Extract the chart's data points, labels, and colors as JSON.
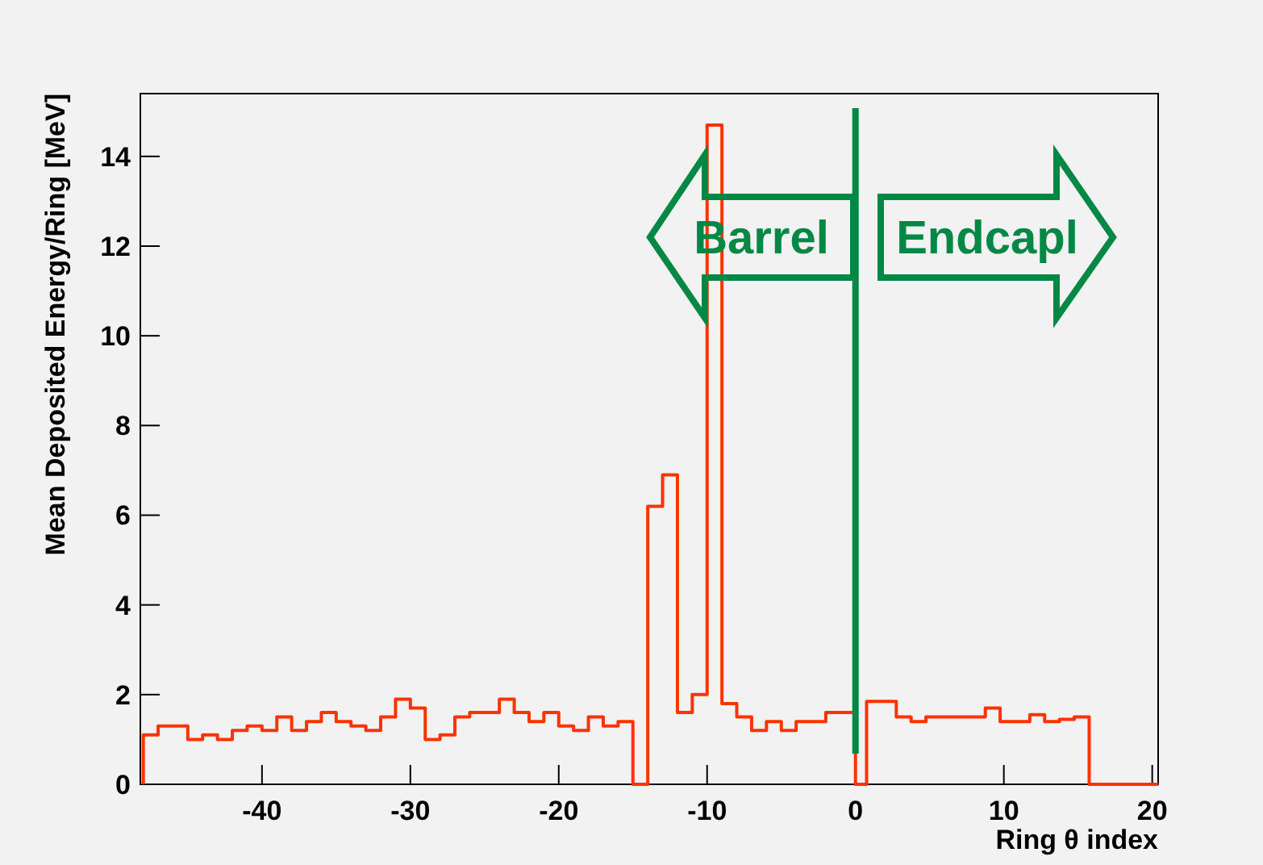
{
  "chart_data": {
    "type": "histogram",
    "xlabel": "Ring θ index",
    "ylabel": "Mean Deposited Energy/Ring [MeV]",
    "bins": [
      -48,
      -47,
      -46,
      -45,
      -44,
      -43,
      -42,
      -41,
      -40,
      -39,
      -38,
      -37,
      -36,
      -35,
      -34,
      -33,
      -32,
      -31,
      -30,
      -29,
      -28,
      -27,
      -26,
      -25,
      -24,
      -23,
      -22,
      -21,
      -20,
      -19,
      -18,
      -17,
      -16,
      -15,
      -14,
      -13,
      -12,
      -11,
      -10,
      -9,
      -8,
      -7,
      -6,
      -5,
      -4,
      -3,
      -2,
      -1,
      0,
      0.75,
      1.75,
      2.75,
      3.75,
      4.75,
      5.75,
      6.75,
      7.75,
      8.75,
      9.75,
      10.75,
      11.75,
      12.75,
      13.75,
      14.75,
      15.75,
      20.4
    ],
    "values": [
      1.1,
      1.3,
      1.3,
      1.0,
      1.1,
      1.0,
      1.2,
      1.3,
      1.2,
      1.5,
      1.2,
      1.4,
      1.6,
      1.4,
      1.3,
      1.2,
      1.5,
      1.9,
      1.7,
      1.0,
      1.1,
      1.5,
      1.6,
      1.6,
      1.9,
      1.6,
      1.4,
      1.6,
      1.3,
      1.2,
      1.5,
      1.3,
      1.4,
      0,
      6.2,
      6.9,
      1.6,
      2.0,
      14.7,
      1.8,
      1.5,
      1.2,
      1.4,
      1.2,
      1.4,
      1.4,
      1.6,
      1.6,
      0,
      1.85,
      1.85,
      1.5,
      1.4,
      1.5,
      1.5,
      1.5,
      1.5,
      1.7,
      1.4,
      1.4,
      1.55,
      1.4,
      1.45,
      1.5,
      0
    ],
    "color": "#ff3300",
    "xlim": [
      -48.2,
      20.4
    ],
    "xticks": [
      -40,
      -30,
      -20,
      -10,
      0,
      10,
      20
    ],
    "ylim": [
      0,
      15.4
    ],
    "yticks": [
      0,
      2,
      4,
      6,
      8,
      10,
      12,
      14
    ],
    "grid": false,
    "ref_lines": [
      {
        "axis": "x",
        "value": 0,
        "color": "#008844"
      }
    ],
    "annotations": [
      "Barrel",
      "Endcapl"
    ]
  }
}
